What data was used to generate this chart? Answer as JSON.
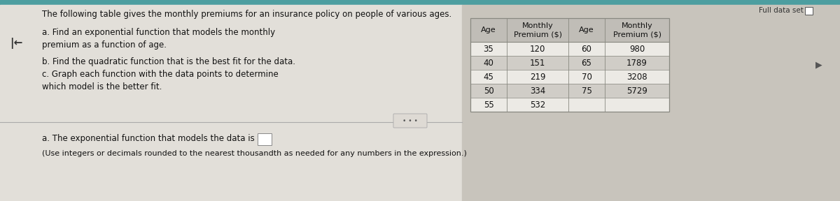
{
  "title": "The following table gives the monthly premiums for an insurance policy on people of various ages.",
  "question_a": "a. Find an exponential function that models the monthly\npremium as a function of age.",
  "question_b": "b. Find the quadratic function that is the best fit for the data.",
  "question_c": "c. Graph each function with the data points to determine\nwhich model is the better fit.",
  "answer_line": "a. The exponential function that models the data is y=",
  "answer_note": "(Use integers or decimals rounded to the nearest thousandth as needed for any numbers in the expression.)",
  "full_data_set_label": "Full data set",
  "col1_header_a": "Age",
  "col1_header_b": "Monthly\nPremium ($)",
  "col2_header_a": "Age",
  "col2_header_b": "Monthly\nPremium ($)",
  "col1_data": [
    [
      "35",
      "120"
    ],
    [
      "40",
      "151"
    ],
    [
      "45",
      "219"
    ],
    [
      "50",
      "334"
    ],
    [
      "55",
      "532"
    ]
  ],
  "col2_data": [
    [
      "60",
      "980"
    ],
    [
      "65",
      "1789"
    ],
    [
      "70",
      "3208"
    ],
    [
      "75",
      "5729"
    ]
  ],
  "bg_color": "#c8c4bc",
  "panel_bg": "#e2dfd9",
  "teal_bar": "#4d9ea0",
  "table_header_bg": "#c0bdb7",
  "table_row_light": "#eceae5",
  "table_row_dark": "#d0cdc7",
  "table_border": "#888880",
  "text_color": "#111111",
  "divider_color": "#aaaaaa",
  "more_btn_bg": "#dedad4",
  "more_btn_border": "#aaaaaa",
  "answer_box_bg": "#ffffff",
  "answer_box_border": "#888888",
  "checkbox_bg": "#ffffff",
  "checkbox_border": "#555555",
  "arrow_color": "#333333",
  "cursor_color": "#555555"
}
